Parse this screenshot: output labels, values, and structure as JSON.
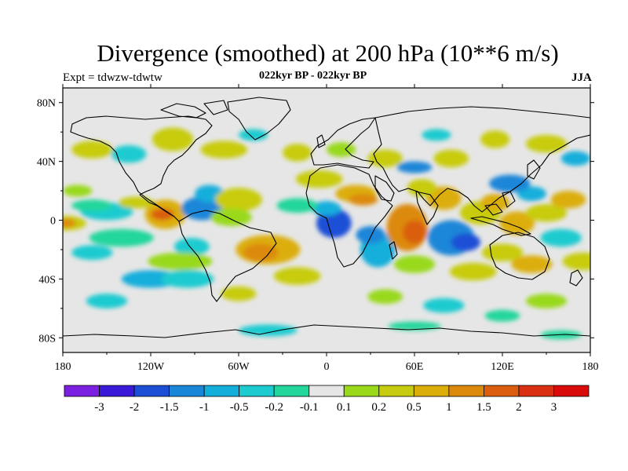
{
  "header": {
    "title": "Divergence (smoothed) at 200 hPa (10**6 m/s)",
    "experiment": "Expt = tdwzw-tdwtw",
    "subtitle": "022kyr BP - 022kyr BP",
    "season": "JJA"
  },
  "axes": {
    "lat_labels": [
      "80N",
      "40N",
      "0",
      "40S",
      "80S"
    ],
    "lat_values": [
      80,
      40,
      0,
      -40,
      -80
    ],
    "lon_labels": [
      "180",
      "120W",
      "60W",
      "0",
      "60E",
      "120E",
      "180"
    ],
    "lon_values": [
      -180,
      -120,
      -60,
      0,
      60,
      120,
      180
    ],
    "lat_range": [
      -90,
      90
    ],
    "lon_range": [
      -180,
      180
    ]
  },
  "colorbar": {
    "labels": [
      "-3",
      "-2",
      "-1.5",
      "-1",
      "-0.5",
      "-0.2",
      "-0.1",
      "0.1",
      "0.2",
      "0.5",
      "1",
      "1.5",
      "2",
      "3"
    ],
    "colors": [
      "#7b1fe0",
      "#3a1ad8",
      "#1d4fd6",
      "#1a86d8",
      "#14aedb",
      "#1ccbd0",
      "#22d69c",
      "#e6e6e6",
      "#99d91a",
      "#c8cc10",
      "#dcae0a",
      "#dc8a0c",
      "#da5e0e",
      "#d83010",
      "#d80a0a"
    ]
  },
  "map": {
    "background": "#e6e6e6",
    "coast_color": "#000000"
  }
}
